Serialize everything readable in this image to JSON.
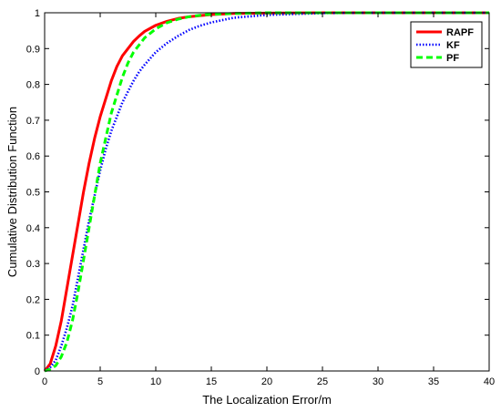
{
  "chart_data": {
    "type": "line",
    "title": "",
    "xlabel": "The Localization Error/m",
    "ylabel": "Cumulative Distribution Function",
    "xlim": [
      0,
      40
    ],
    "ylim": [
      0,
      1
    ],
    "xticks": [
      0,
      5,
      10,
      15,
      20,
      25,
      30,
      35,
      40
    ],
    "xtick_labels": [
      "0",
      "5",
      "10",
      "15",
      "20",
      "25",
      "30",
      "35",
      "40"
    ],
    "yticks": [
      0,
      0.1,
      0.2,
      0.3,
      0.4,
      0.5,
      0.6,
      0.7,
      0.8,
      0.9,
      1
    ],
    "ytick_labels": [
      "0",
      "0.1",
      "0.2",
      "0.3",
      "0.4",
      "0.5",
      "0.6",
      "0.7",
      "0.8",
      "0.9",
      "1"
    ],
    "grid": false,
    "legend_position": "top-right",
    "series": [
      {
        "name": "RAPF",
        "color": "#ff0000",
        "style": "solid",
        "x": [
          0,
          0.5,
          1,
          1.5,
          2,
          2.5,
          3,
          3.5,
          4,
          4.5,
          5,
          5.5,
          6,
          6.5,
          7,
          7.5,
          8,
          8.5,
          9,
          10,
          11,
          12,
          13,
          14,
          15,
          17,
          20,
          25,
          30,
          35,
          40
        ],
        "y": [
          0,
          0.02,
          0.07,
          0.14,
          0.23,
          0.32,
          0.41,
          0.5,
          0.58,
          0.65,
          0.71,
          0.76,
          0.81,
          0.85,
          0.88,
          0.9,
          0.92,
          0.935,
          0.948,
          0.965,
          0.976,
          0.984,
          0.989,
          0.992,
          0.995,
          0.998,
          0.999,
          1,
          1,
          1,
          1
        ]
      },
      {
        "name": "KF",
        "color": "#0000ff",
        "style": "dotted",
        "x": [
          0,
          0.5,
          1,
          1.5,
          2,
          2.5,
          3,
          3.5,
          4,
          4.5,
          5,
          5.5,
          6,
          6.5,
          7,
          7.5,
          8,
          8.5,
          9,
          10,
          11,
          12,
          13,
          14,
          15,
          17,
          20,
          25,
          30,
          35,
          40
        ],
        "y": [
          0,
          0.01,
          0.03,
          0.07,
          0.12,
          0.18,
          0.26,
          0.34,
          0.42,
          0.49,
          0.56,
          0.62,
          0.67,
          0.71,
          0.75,
          0.78,
          0.81,
          0.835,
          0.855,
          0.89,
          0.915,
          0.935,
          0.952,
          0.964,
          0.973,
          0.986,
          0.994,
          0.999,
          1,
          1,
          1
        ]
      },
      {
        "name": "PF",
        "color": "#00ff00",
        "style": "dashed",
        "x": [
          0,
          0.5,
          1,
          1.5,
          2,
          2.5,
          3,
          3.5,
          4,
          4.5,
          5,
          5.5,
          6,
          6.5,
          7,
          7.5,
          8,
          8.5,
          9,
          10,
          11,
          12,
          13,
          14,
          15,
          17,
          20,
          25,
          30,
          35,
          40
        ],
        "y": [
          0,
          0.005,
          0.015,
          0.04,
          0.08,
          0.14,
          0.22,
          0.31,
          0.4,
          0.49,
          0.58,
          0.65,
          0.72,
          0.77,
          0.82,
          0.86,
          0.89,
          0.91,
          0.93,
          0.955,
          0.972,
          0.982,
          0.989,
          0.993,
          0.996,
          0.998,
          1,
          1,
          1,
          1,
          1
        ]
      }
    ]
  }
}
